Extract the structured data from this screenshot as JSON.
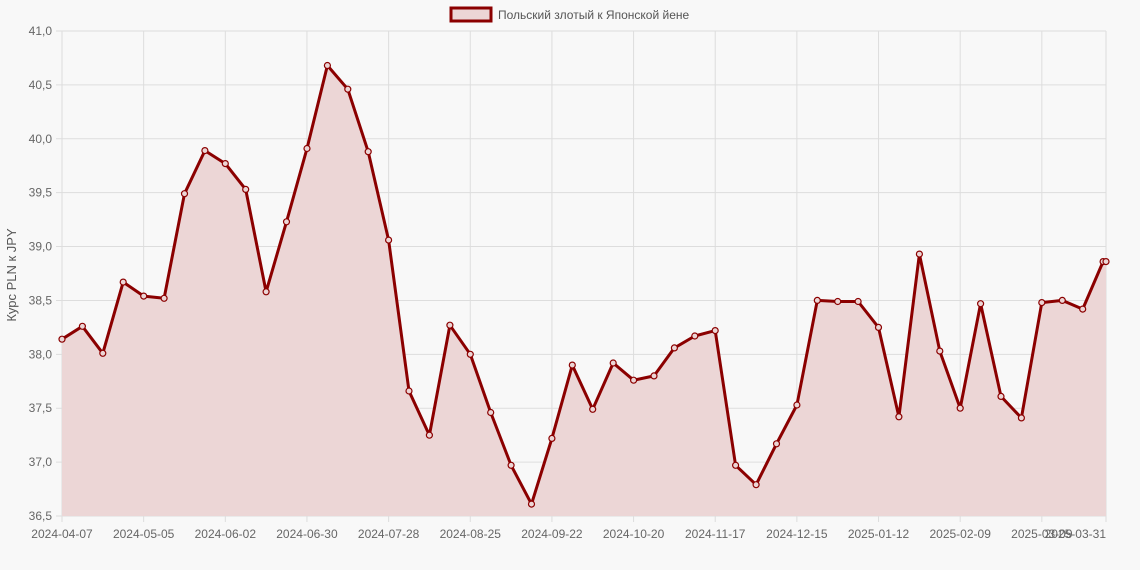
{
  "chart_data": {
    "type": "line",
    "ylabel": "Курс PLN к JPY",
    "ylim": [
      36.5,
      41.0
    ],
    "y_ticks": [
      "36,5",
      "37,0",
      "37,5",
      "38,0",
      "38,5",
      "39,0",
      "39,5",
      "40,0",
      "40,5",
      "41,0"
    ],
    "x_tick_labels": [
      "2024-04-07",
      "2024-05-05",
      "2024-06-02",
      "2024-06-30",
      "2024-07-28",
      "2024-08-25",
      "2024-09-22",
      "2024-10-20",
      "2024-11-17",
      "2024-12-15",
      "2025-01-12",
      "2025-02-09",
      "2025-03-09",
      "2025-03-31"
    ],
    "grid": true,
    "legend_position": "top",
    "colors": {
      "line": "#8b0000",
      "fill": "#ecd6d6",
      "grid": "#dddddd"
    },
    "series": [
      {
        "name": "Польский злотый к Японской йене",
        "x": [
          "2024-04-07",
          "2024-04-14",
          "2024-04-21",
          "2024-04-28",
          "2024-05-05",
          "2024-05-12",
          "2024-05-19",
          "2024-05-26",
          "2024-06-02",
          "2024-06-09",
          "2024-06-16",
          "2024-06-23",
          "2024-06-30",
          "2024-07-07",
          "2024-07-14",
          "2024-07-21",
          "2024-07-28",
          "2024-08-04",
          "2024-08-11",
          "2024-08-18",
          "2024-08-25",
          "2024-09-01",
          "2024-09-08",
          "2024-09-15",
          "2024-09-22",
          "2024-09-29",
          "2024-10-06",
          "2024-10-13",
          "2024-10-20",
          "2024-10-27",
          "2024-11-03",
          "2024-11-10",
          "2024-11-17",
          "2024-11-24",
          "2024-12-01",
          "2024-12-08",
          "2024-12-15",
          "2024-12-22",
          "2024-12-29",
          "2025-01-05",
          "2025-01-12",
          "2025-01-19",
          "2025-01-26",
          "2025-02-02",
          "2025-02-09",
          "2025-02-16",
          "2025-02-23",
          "2025-03-02",
          "2025-03-09",
          "2025-03-16",
          "2025-03-23",
          "2025-03-30",
          "2025-03-31"
        ],
        "values": [
          38.14,
          38.26,
          38.01,
          38.67,
          38.54,
          38.52,
          39.49,
          39.89,
          39.77,
          39.53,
          38.58,
          39.23,
          39.91,
          40.68,
          40.46,
          39.88,
          39.06,
          37.66,
          37.25,
          38.27,
          38.0,
          37.46,
          36.97,
          36.61,
          37.22,
          37.9,
          37.49,
          37.92,
          37.76,
          37.8,
          38.06,
          38.17,
          38.22,
          36.97,
          36.79,
          37.17,
          37.53,
          38.5,
          38.49,
          38.49,
          38.25,
          37.42,
          38.93,
          38.03,
          37.5,
          38.47,
          37.61,
          37.41,
          38.48,
          38.5,
          38.42,
          38.86,
          38.86
        ]
      }
    ]
  }
}
